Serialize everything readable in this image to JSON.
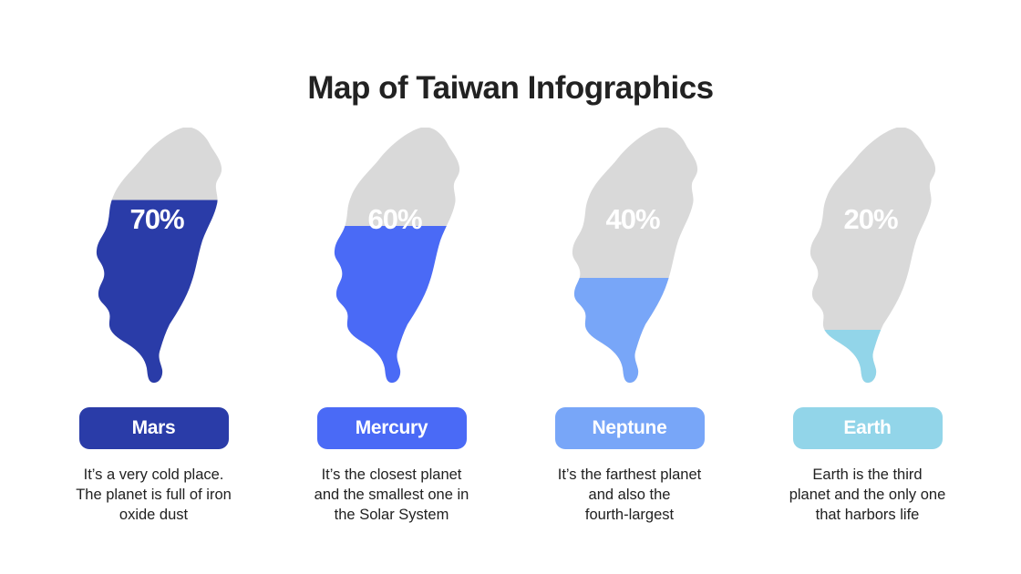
{
  "title": "Map of Taiwan Infographics",
  "colors": {
    "background": "#FFFFFF",
    "title_text": "#222222",
    "body_text": "#212121",
    "percent_text": "#FFFFFF",
    "map_track": "#D9D9D9"
  },
  "chart_data": {
    "type": "bar",
    "title": "Map of Taiwan Infographics",
    "categories": [
      "Mars",
      "Mercury",
      "Neptune",
      "Earth"
    ],
    "values": [
      70,
      60,
      40,
      20
    ],
    "unit": "%",
    "ylim": [
      0,
      100
    ],
    "colors": [
      "#2A3CA8",
      "#4A6AF6",
      "#78A6F8",
      "#92D5E9"
    ],
    "track_color": "#D9D9D9",
    "legend": "none",
    "notes": "Each value drawn as a bottom-up fill of a Taiwan map silhouette"
  },
  "maps": [
    {
      "label": "Mars",
      "percent": 70,
      "percent_label": "70%",
      "color": "#2A3CA8",
      "lines": [
        "It’s a very cold place.",
        "The planet is full of iron",
        "oxide dust"
      ]
    },
    {
      "label": "Mercury",
      "percent": 60,
      "percent_label": "60%",
      "color": "#4A6AF6",
      "lines": [
        "It’s the closest planet",
        "and the smallest one in",
        "the Solar System"
      ]
    },
    {
      "label": "Neptune",
      "percent": 40,
      "percent_label": "40%",
      "color": "#78A6F8",
      "lines": [
        "It’s the farthest planet",
        "and also the",
        "fourth-largest"
      ]
    },
    {
      "label": "Earth",
      "percent": 20,
      "percent_label": "20%",
      "color": "#92D5E9",
      "lines": [
        "Earth is the third",
        "planet and the only one",
        "that harbors life"
      ]
    }
  ]
}
